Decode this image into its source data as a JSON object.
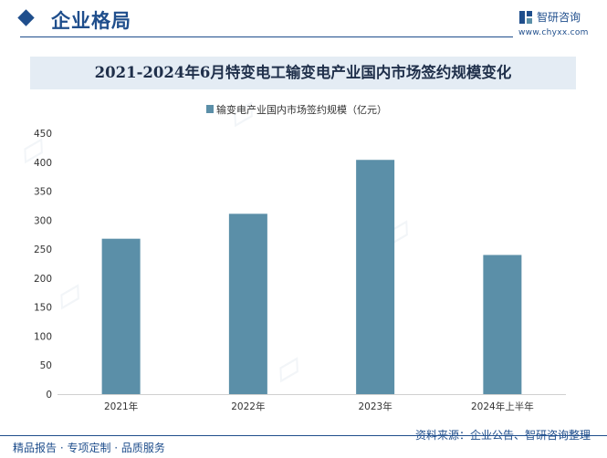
{
  "header": {
    "section_title": "企业格局",
    "brand_name": "智研咨询",
    "brand_url": "www.chyxx.com"
  },
  "chart_data": {
    "type": "bar",
    "title": "2021-2024年6月特变电工输变电产业国内市场签约规模变化",
    "categories": [
      "2021年",
      "2022年",
      "2023年",
      "2024年上半年"
    ],
    "series": [
      {
        "name": "输变电产业国内市场签约规模（亿元）",
        "values": [
          268,
          311,
          404,
          240
        ]
      }
    ],
    "ylim": [
      0,
      450
    ],
    "yticks": [
      "0",
      "50",
      "100",
      "150",
      "200",
      "250",
      "300",
      "350",
      "400",
      "450"
    ],
    "color": "#5b8fa8",
    "grid": false,
    "legend_position": "top-center"
  },
  "footer": {
    "left": "精品报告 · 专项定制 · 品质服务",
    "right": "资料来源：企业公告、智研咨询整理"
  }
}
